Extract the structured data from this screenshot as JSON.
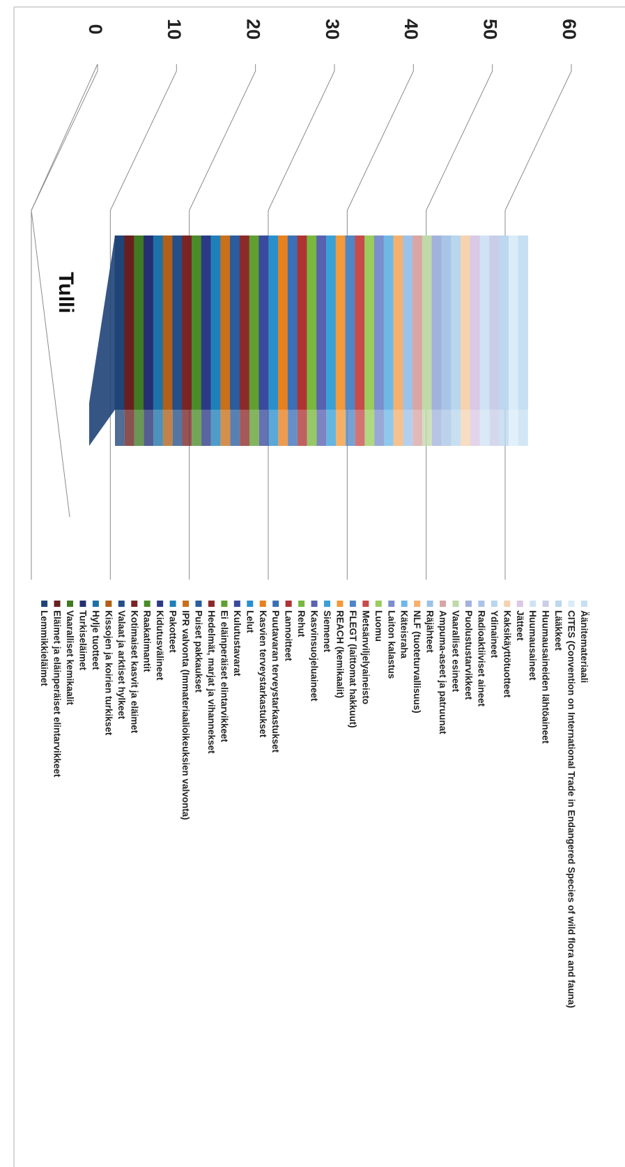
{
  "chart_data": {
    "type": "bar",
    "stacked": true,
    "three_d": true,
    "orientation": "rotated 90° clockwise on the page",
    "categories": [
      "Tulli"
    ],
    "ylim": [
      0,
      60
    ],
    "yticks": [
      "0",
      "10",
      "20",
      "30",
      "40",
      "50",
      "60"
    ],
    "grid": true,
    "legend_position": "right",
    "series": [
      {
        "name": "Äänitemateriaali",
        "values": [
          1
        ],
        "color": "#c6dff2"
      },
      {
        "name": "CITES (Convention on International Trade in Endangered Species of wild flora and fauna)",
        "values": [
          1
        ],
        "color": "#d9ecf8"
      },
      {
        "name": "Lääkkeet",
        "values": [
          1
        ],
        "color": "#bcd7ee"
      },
      {
        "name": "Huumausaineiden lähtöaineet",
        "values": [
          1
        ],
        "color": "#c9cde8"
      },
      {
        "name": "Huumausaineet",
        "values": [
          1
        ],
        "color": "#cfe3f4"
      },
      {
        "name": "Jätteet",
        "values": [
          1
        ],
        "color": "#d9c8e6"
      },
      {
        "name": "Kaksikäyttötuotteet",
        "values": [
          1
        ],
        "color": "#f5d3b0"
      },
      {
        "name": "Ydinaineet",
        "values": [
          1
        ],
        "color": "#b8d6ec"
      },
      {
        "name": "Radioaktiiviset aineet",
        "values": [
          1
        ],
        "color": "#a9c4e6"
      },
      {
        "name": "Puolustustarvikkeet",
        "values": [
          1
        ],
        "color": "#a3b2dc"
      },
      {
        "name": "Vaaralliset esineet",
        "values": [
          1
        ],
        "color": "#bfd9a8"
      },
      {
        "name": "Ampuma-aseet ja patruunat",
        "values": [
          1
        ],
        "color": "#d9a5a5"
      },
      {
        "name": "Räjähteet",
        "values": [
          1
        ],
        "color": "#9cc2e8"
      },
      {
        "name": "NLF (tuoteturvallisuus)",
        "values": [
          1
        ],
        "color": "#f5b06e"
      },
      {
        "name": "Käteisraha",
        "values": [
          1
        ],
        "color": "#6fb8e6"
      },
      {
        "name": "Laiton kalastus",
        "values": [
          1
        ],
        "color": "#7b8fcc"
      },
      {
        "name": "Luomu",
        "values": [
          1
        ],
        "color": "#9acd5c"
      },
      {
        "name": "Metsänviljelyaineisto",
        "values": [
          1
        ],
        "color": "#c84b4b"
      },
      {
        "name": "FLEGT (laittomat hakkuut)",
        "values": [
          1
        ],
        "color": "#4f86c6"
      },
      {
        "name": "REACH (kemikaalit)",
        "values": [
          1
        ],
        "color": "#f39a3a"
      },
      {
        "name": "Siemenet",
        "values": [
          1
        ],
        "color": "#3aa0d8"
      },
      {
        "name": "Kasvinsuojeluaineet",
        "values": [
          1
        ],
        "color": "#5862b0"
      },
      {
        "name": "Rehut",
        "values": [
          1
        ],
        "color": "#78b83e"
      },
      {
        "name": "Lannoitteet",
        "values": [
          1
        ],
        "color": "#b03333"
      },
      {
        "name": "Puutavaran terveystarkastukset",
        "values": [
          1
        ],
        "color": "#3a70b8"
      },
      {
        "name": "Kasvien terveystarkastukset",
        "values": [
          1
        ],
        "color": "#e8801e"
      },
      {
        "name": "Lelut",
        "values": [
          1
        ],
        "color": "#2a90cc"
      },
      {
        "name": "Kulutustavarat",
        "values": [
          1
        ],
        "color": "#3a4a9c"
      },
      {
        "name": "Ei eläinperäiset elintarvikkeet",
        "values": [
          1
        ],
        "color": "#5fa030"
      },
      {
        "name": "Hedelmät, marjat ja vihannekset",
        "values": [
          1
        ],
        "color": "#8c2a2a"
      },
      {
        "name": "Puiset pakkaukset",
        "values": [
          1
        ],
        "color": "#2a5c9e"
      },
      {
        "name": "IPR valvonta (Immateriaalioikeuksien valvonta)",
        "values": [
          1
        ],
        "color": "#c8701a"
      },
      {
        "name": "Pakotteet",
        "values": [
          1
        ],
        "color": "#1f80b8"
      },
      {
        "name": "Kidutusvälineet",
        "values": [
          1
        ],
        "color": "#2c3a86"
      },
      {
        "name": "Raakatimantit",
        "values": [
          1
        ],
        "color": "#4a8c28"
      },
      {
        "name": "Kotimaiset kasvit ja eläimet",
        "values": [
          1
        ],
        "color": "#7a2424"
      },
      {
        "name": "Valaat ja arktiset hylkeet",
        "values": [
          1
        ],
        "color": "#244f88"
      },
      {
        "name": "Kissojen ja koirien turkikset",
        "values": [
          1
        ],
        "color": "#b06018"
      },
      {
        "name": "Hylje tuotteet",
        "values": [
          1
        ],
        "color": "#1c72a6"
      },
      {
        "name": "Turkiseläimet",
        "values": [
          1
        ],
        "color": "#252f72"
      },
      {
        "name": "Vaaralliset kemikaalit",
        "values": [
          1
        ],
        "color": "#407a22"
      },
      {
        "name": "Eläimet ja eläinperäiset elintarvikkeet",
        "values": [
          1
        ],
        "color": "#6a1f1f"
      },
      {
        "name": "Lemmikkieläimet",
        "values": [
          1
        ],
        "color": "#1f4478"
      }
    ]
  }
}
